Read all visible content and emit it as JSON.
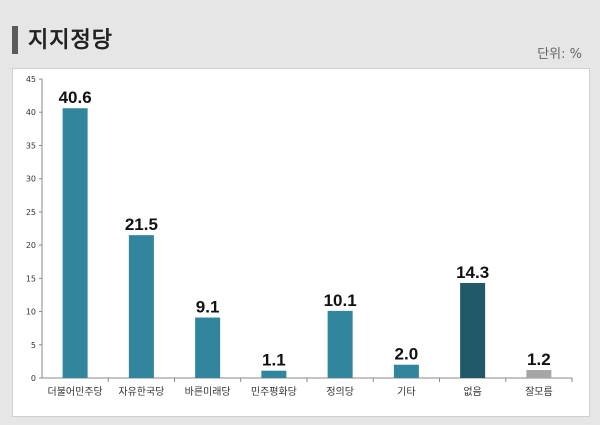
{
  "header": {
    "title": "지지정당",
    "unit": "단위: %"
  },
  "chart_data": {
    "type": "bar",
    "title": "지지정당",
    "xlabel": "",
    "ylabel": "",
    "ylim": [
      0,
      45
    ],
    "yticks": [
      0,
      5,
      10,
      15,
      20,
      25,
      30,
      35,
      40,
      45
    ],
    "grid": false,
    "legend": "none",
    "categories": [
      "더불어민주당",
      "자유한국당",
      "바른미래당",
      "민주평화당",
      "정의당",
      "기타",
      "없음",
      "잘모름"
    ],
    "values": [
      40.6,
      21.5,
      9.1,
      1.1,
      10.1,
      2.0,
      14.3,
      1.2
    ],
    "value_labels": [
      "40.6",
      "21.5",
      "9.1",
      "1.1",
      "10.1",
      "2.0",
      "14.3",
      "1.2"
    ],
    "colors": [
      "#31859c",
      "#31859c",
      "#31859c",
      "#31859c",
      "#31859c",
      "#31859c",
      "#215968",
      "#a6a6a6"
    ]
  }
}
